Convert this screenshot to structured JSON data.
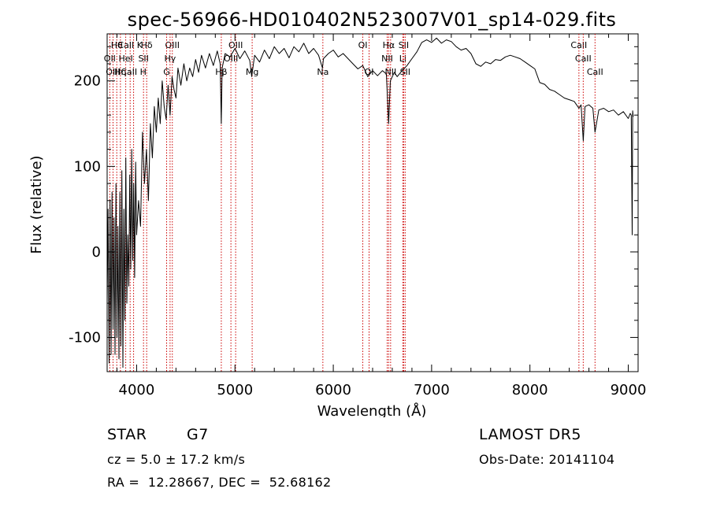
{
  "chart_data": {
    "type": "line",
    "title": "spec-56966-HD010402N523007V01_sp14-029.fits",
    "xlabel": "Wavelength (Å)",
    "ylabel": "Flux (relative)",
    "xlim": [
      3700,
      9100
    ],
    "ylim": [
      -140,
      255
    ],
    "xticks": [
      4000,
      5000,
      6000,
      7000,
      8000,
      9000
    ],
    "yticks": [
      -100,
      0,
      100,
      200
    ],
    "line_color": "#000000",
    "marker_color": "#cc0000",
    "series": [
      {
        "points": [
          [
            3700,
            -60
          ],
          [
            3710,
            50
          ],
          [
            3720,
            -130
          ],
          [
            3730,
            60
          ],
          [
            3740,
            -120
          ],
          [
            3750,
            70
          ],
          [
            3760,
            -90
          ],
          [
            3770,
            40
          ],
          [
            3780,
            -120
          ],
          [
            3790,
            80
          ],
          [
            3800,
            -100
          ],
          [
            3810,
            30
          ],
          [
            3820,
            -125
          ],
          [
            3830,
            70
          ],
          [
            3840,
            -110
          ],
          [
            3850,
            95
          ],
          [
            3860,
            -135
          ],
          [
            3870,
            50
          ],
          [
            3880,
            -80
          ],
          [
            3890,
            110
          ],
          [
            3900,
            -60
          ],
          [
            3910,
            20
          ],
          [
            3920,
            -40
          ],
          [
            3930,
            90
          ],
          [
            3940,
            -20
          ],
          [
            3950,
            120
          ],
          [
            3960,
            -10
          ],
          [
            3970,
            80
          ],
          [
            3980,
            -30
          ],
          [
            3990,
            105
          ],
          [
            4000,
            20
          ],
          [
            4020,
            60
          ],
          [
            4040,
            30
          ],
          [
            4060,
            140
          ],
          [
            4080,
            80
          ],
          [
            4100,
            120
          ],
          [
            4120,
            60
          ],
          [
            4140,
            150
          ],
          [
            4160,
            110
          ],
          [
            4180,
            170
          ],
          [
            4200,
            140
          ],
          [
            4220,
            180
          ],
          [
            4240,
            150
          ],
          [
            4260,
            200
          ],
          [
            4280,
            170
          ],
          [
            4300,
            155
          ],
          [
            4320,
            195
          ],
          [
            4340,
            160
          ],
          [
            4360,
            205
          ],
          [
            4380,
            190
          ],
          [
            4400,
            180
          ],
          [
            4420,
            215
          ],
          [
            4450,
            195
          ],
          [
            4480,
            220
          ],
          [
            4510,
            200
          ],
          [
            4540,
            215
          ],
          [
            4570,
            205
          ],
          [
            4600,
            225
          ],
          [
            4630,
            210
          ],
          [
            4660,
            230
          ],
          [
            4700,
            215
          ],
          [
            4740,
            232
          ],
          [
            4780,
            218
          ],
          [
            4820,
            235
          ],
          [
            4850,
            220
          ],
          [
            4861,
            150
          ],
          [
            4870,
            215
          ],
          [
            4900,
            232
          ],
          [
            4950,
            228
          ],
          [
            5000,
            238
          ],
          [
            5050,
            226
          ],
          [
            5100,
            235
          ],
          [
            5150,
            224
          ],
          [
            5170,
            205
          ],
          [
            5200,
            230
          ],
          [
            5250,
            222
          ],
          [
            5300,
            236
          ],
          [
            5350,
            226
          ],
          [
            5400,
            240
          ],
          [
            5450,
            232
          ],
          [
            5500,
            238
          ],
          [
            5550,
            227
          ],
          [
            5600,
            240
          ],
          [
            5650,
            234
          ],
          [
            5700,
            244
          ],
          [
            5750,
            232
          ],
          [
            5800,
            238
          ],
          [
            5850,
            230
          ],
          [
            5890,
            215
          ],
          [
            5900,
            226
          ],
          [
            5950,
            232
          ],
          [
            6000,
            236
          ],
          [
            6050,
            228
          ],
          [
            6100,
            232
          ],
          [
            6150,
            226
          ],
          [
            6200,
            220
          ],
          [
            6250,
            214
          ],
          [
            6300,
            218
          ],
          [
            6350,
            205
          ],
          [
            6400,
            212
          ],
          [
            6450,
            206
          ],
          [
            6500,
            212
          ],
          [
            6540,
            208
          ],
          [
            6563,
            150
          ],
          [
            6580,
            200
          ],
          [
            6620,
            210
          ],
          [
            6650,
            205
          ],
          [
            6700,
            212
          ],
          [
            6750,
            218
          ],
          [
            6800,
            226
          ],
          [
            6850,
            234
          ],
          [
            6900,
            245
          ],
          [
            6950,
            248
          ],
          [
            7000,
            245
          ],
          [
            7050,
            250
          ],
          [
            7100,
            244
          ],
          [
            7150,
            248
          ],
          [
            7200,
            246
          ],
          [
            7250,
            240
          ],
          [
            7300,
            236
          ],
          [
            7350,
            238
          ],
          [
            7400,
            232
          ],
          [
            7450,
            220
          ],
          [
            7500,
            217
          ],
          [
            7550,
            222
          ],
          [
            7600,
            220
          ],
          [
            7650,
            225
          ],
          [
            7700,
            224
          ],
          [
            7750,
            228
          ],
          [
            7800,
            230
          ],
          [
            7850,
            228
          ],
          [
            7900,
            226
          ],
          [
            7950,
            222
          ],
          [
            8000,
            218
          ],
          [
            8050,
            214
          ],
          [
            8100,
            198
          ],
          [
            8150,
            196
          ],
          [
            8200,
            190
          ],
          [
            8250,
            188
          ],
          [
            8300,
            184
          ],
          [
            8350,
            180
          ],
          [
            8400,
            178
          ],
          [
            8450,
            176
          ],
          [
            8498,
            168
          ],
          [
            8520,
            172
          ],
          [
            8542,
            130
          ],
          [
            8560,
            170
          ],
          [
            8600,
            172
          ],
          [
            8640,
            168
          ],
          [
            8662,
            140
          ],
          [
            8700,
            166
          ],
          [
            8750,
            168
          ],
          [
            8800,
            164
          ],
          [
            8850,
            166
          ],
          [
            8900,
            160
          ],
          [
            8950,
            164
          ],
          [
            9000,
            156
          ],
          [
            9020,
            162
          ],
          [
            9030,
            160
          ],
          [
            9040,
            20
          ],
          [
            9045,
            165
          ],
          [
            9050,
            158
          ]
        ]
      }
    ],
    "line_markers": [
      {
        "label": "Hθ",
        "x": 3798,
        "row": 0
      },
      {
        "label": "CaII K",
        "x": 3934,
        "row": 0
      },
      {
        "label": "Hδ",
        "x": 4102,
        "row": 0
      },
      {
        "label": "OII",
        "x": 3727,
        "row": 1
      },
      {
        "label": "HeI",
        "x": 3889,
        "row": 1
      },
      {
        "label": "SII",
        "x": 4070,
        "row": 1
      },
      {
        "label": "OIII",
        "x": 3760,
        "row": 2
      },
      {
        "label": "Hη",
        "x": 3835,
        "row": 2
      },
      {
        "label": "CaII H",
        "x": 3969,
        "row": 2
      },
      {
        "label": "OIII",
        "x": 4363,
        "row": 0
      },
      {
        "label": "Hγ",
        "x": 4340,
        "row": 1
      },
      {
        "label": "G",
        "x": 4305,
        "row": 2
      },
      {
        "label": "OIII",
        "x": 5007,
        "row": 0
      },
      {
        "label": "OIII",
        "x": 4959,
        "row": 1
      },
      {
        "label": "Hβ",
        "x": 4861,
        "row": 2
      },
      {
        "label": "Mg",
        "x": 5175,
        "row": 2
      },
      {
        "label": "Na",
        "x": 5894,
        "row": 2
      },
      {
        "label": "OI",
        "x": 6300,
        "row": 0
      },
      {
        "label": "OI",
        "x": 6364,
        "row": 2
      },
      {
        "label": "Hα",
        "x": 6563,
        "row": 0
      },
      {
        "label": "SII",
        "x": 6716,
        "row": 0
      },
      {
        "label": "NII",
        "x": 6548,
        "row": 1
      },
      {
        "label": "Li",
        "x": 6707,
        "row": 1
      },
      {
        "label": "NII",
        "x": 6583,
        "row": 2
      },
      {
        "label": "SII",
        "x": 6731,
        "row": 2
      },
      {
        "label": "CaII",
        "x": 8498,
        "row": 0
      },
      {
        "label": "CaII",
        "x": 8542,
        "row": 1
      },
      {
        "label": "CaII",
        "x": 8662,
        "row": 2
      }
    ]
  },
  "footer": {
    "object_class": "STAR",
    "subclass": "G7",
    "redshift": "cz = 5.0 ± 17.2 km/s",
    "coords": "RA =  12.28667, DEC =  52.68162",
    "survey": "LAMOST DR5",
    "obs_date": "Obs-Date: 20141104"
  }
}
